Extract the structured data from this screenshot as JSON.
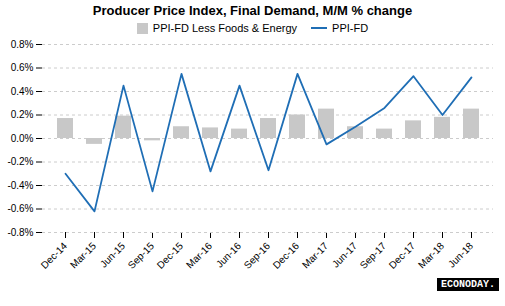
{
  "chart_data": {
    "type": "bar",
    "title": "Producer Price Index, Final Demand, M/M % change",
    "categories": [
      "Dec-14",
      "Mar-15",
      "Jun-15",
      "Sep-15",
      "Dec-15",
      "Mar-16",
      "Jun-16",
      "Sep-16",
      "Dec-16",
      "Mar-17",
      "Jun-17",
      "Sep-17",
      "Dec-17",
      "Mar-18",
      "Jun-18"
    ],
    "series": [
      {
        "name": "PPI-FD Less Foods & Energy",
        "type": "bar",
        "color": "#c8c8c8",
        "values": [
          0.17,
          -0.05,
          0.19,
          -0.02,
          0.1,
          0.09,
          0.08,
          0.17,
          0.2,
          0.25,
          0.1,
          0.08,
          0.15,
          0.18,
          0.25
        ]
      },
      {
        "name": "PPI-FD",
        "type": "line",
        "color": "#1f6eb5",
        "values": [
          -0.3,
          -0.62,
          0.45,
          -0.45,
          0.55,
          -0.28,
          0.45,
          -0.27,
          0.55,
          -0.05,
          0.1,
          0.26,
          0.53,
          0.2,
          0.52
        ]
      }
    ],
    "ylim": [
      -0.8,
      0.8
    ],
    "yticks": [
      {
        "value": -0.8,
        "label": "-0.8%"
      },
      {
        "value": -0.6,
        "label": "-0.6%"
      },
      {
        "value": -0.4,
        "label": "-0.4%"
      },
      {
        "value": -0.2,
        "label": "-0.2%"
      },
      {
        "value": 0.0,
        "label": "0.0%"
      },
      {
        "value": 0.2,
        "label": "0.2%"
      },
      {
        "value": 0.4,
        "label": "0.4%"
      },
      {
        "value": 0.6,
        "label": "0.6%"
      },
      {
        "value": 0.8,
        "label": "0.8%"
      }
    ],
    "grid": true,
    "legend": "upper center",
    "annotations": [
      "ECONODAY."
    ]
  }
}
